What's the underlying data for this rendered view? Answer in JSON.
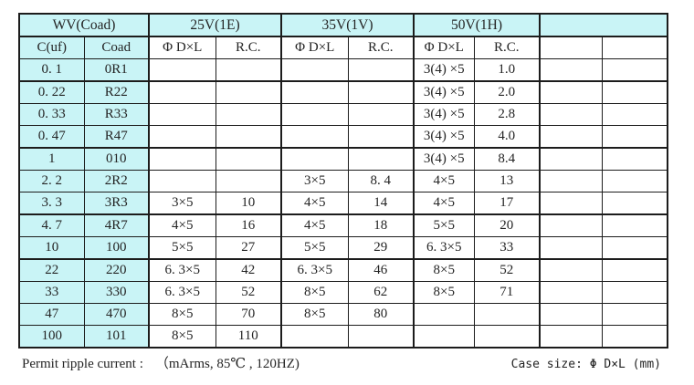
{
  "colors": {
    "header_bg": "#c9f4f6",
    "border": "#1c1c1c",
    "text": "#242424",
    "page_bg": "#ffffff"
  },
  "table": {
    "header_row1": [
      "WV(Coad)",
      "25V(1E)",
      "35V(1V)",
      "50V(1H)",
      ""
    ],
    "header_row2": [
      "C(uf)",
      "Coad",
      "Φ D×L",
      "R.C.",
      "Φ D×L",
      "R.C.",
      "Φ D×L",
      "R.C.",
      "",
      ""
    ],
    "rows": [
      {
        "cells": [
          "0. 1",
          "0R1",
          "",
          "",
          "",
          "",
          "3(4) ×5",
          "1.0",
          "",
          ""
        ]
      },
      {
        "cells": [
          "0. 22",
          "R22",
          "",
          "",
          "",
          "",
          "3(4) ×5",
          "2.0",
          "",
          ""
        ]
      },
      {
        "cells": [
          "0. 33",
          "R33",
          "",
          "",
          "",
          "",
          "3(4) ×5",
          "2.8",
          "",
          ""
        ]
      },
      {
        "cells": [
          "0. 47",
          "R47",
          "",
          "",
          "",
          "",
          "3(4) ×5",
          "4.0",
          "",
          ""
        ]
      },
      {
        "cells": [
          "1",
          "010",
          "",
          "",
          "",
          "",
          "3(4) ×5",
          "8.4",
          "",
          ""
        ]
      },
      {
        "cells": [
          "2. 2",
          "2R2",
          "",
          "",
          "3×5",
          "8. 4",
          "4×5",
          "13",
          "",
          ""
        ]
      },
      {
        "cells": [
          "3. 3",
          "3R3",
          "3×5",
          "10",
          "4×5",
          "14",
          "4×5",
          "17",
          "",
          ""
        ]
      },
      {
        "cells": [
          "4. 7",
          "4R7",
          "4×5",
          "16",
          "4×5",
          "18",
          "5×5",
          "20",
          "",
          ""
        ]
      },
      {
        "cells": [
          "10",
          "100",
          "5×5",
          "27",
          "5×5",
          "29",
          "6. 3×5",
          "33",
          "",
          ""
        ]
      },
      {
        "cells": [
          "22",
          "220",
          "6. 3×5",
          "42",
          "6. 3×5",
          "46",
          "8×5",
          "52",
          "",
          ""
        ]
      },
      {
        "cells": [
          "33",
          "330",
          "6. 3×5",
          "52",
          "8×5",
          "62",
          "8×5",
          "71",
          "",
          ""
        ]
      },
      {
        "cells": [
          "47",
          "470",
          "8×5",
          "70",
          "8×5",
          "80",
          "",
          "",
          "",
          ""
        ]
      },
      {
        "cells": [
          "100",
          "101",
          "8×5",
          "110",
          "",
          "",
          "",
          "",
          "",
          ""
        ]
      }
    ]
  },
  "footer": {
    "left_label": "Permit ripple current :",
    "left_value": "（mArms,  85℃ , 120HZ)",
    "right": "Case size:  Φ D×L  (mm)"
  }
}
